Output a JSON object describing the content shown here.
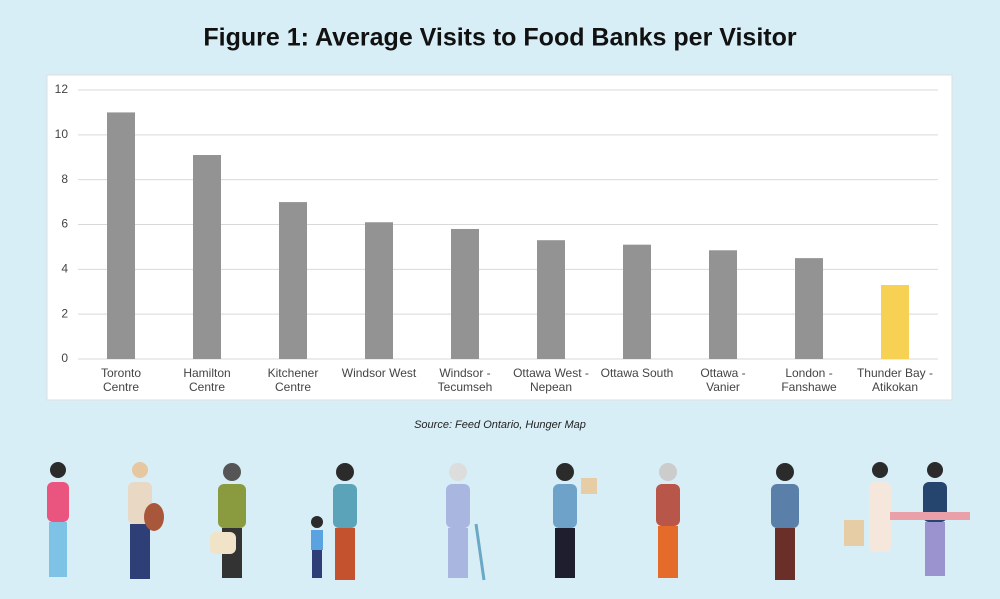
{
  "chart_data": {
    "type": "bar",
    "title": "Figure 1: Average Visits to Food Banks per Visitor",
    "source": "Source: Feed Ontario, Hunger Map",
    "categories": [
      "Toronto Centre",
      "Hamilton Centre",
      "Kitchener Centre",
      "Windsor West",
      "Windsor - Tecumseh",
      "Ottawa West - Nepean",
      "Ottawa South",
      "Ottawa - Vanier",
      "London - Fanshawe",
      "Thunder Bay - Atikokan"
    ],
    "values": [
      11,
      9.1,
      7,
      6.1,
      5.8,
      5.3,
      5.1,
      4.85,
      4.5,
      3.3
    ],
    "colors": [
      "#939393",
      "#939393",
      "#939393",
      "#939393",
      "#939393",
      "#939393",
      "#939393",
      "#939393",
      "#939393",
      "#f7d154"
    ],
    "ylim": [
      0,
      12
    ],
    "yticks": [
      0,
      2,
      4,
      6,
      8,
      10,
      12
    ],
    "grid": true
  }
}
